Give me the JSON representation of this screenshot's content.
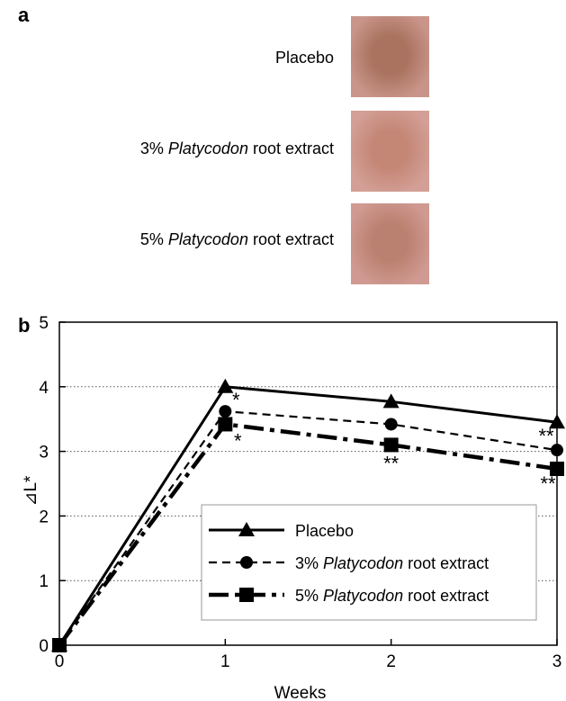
{
  "panel_a": {
    "label": "a",
    "samples": [
      {
        "prefix": "",
        "italic": "",
        "suffix": "Placebo",
        "color_center": "#a9735f",
        "color_edge": "#c9958a"
      },
      {
        "prefix": "3% ",
        "italic": "Platycodon",
        "suffix": " root extract",
        "color_center": "#c48776",
        "color_edge": "#d39f96"
      },
      {
        "prefix": "5% ",
        "italic": "Platycodon",
        "suffix": " root extract",
        "color_center": "#bb8170",
        "color_edge": "#d09a92"
      }
    ]
  },
  "panel_b": {
    "label": "b"
  },
  "chart_data": {
    "type": "line",
    "xlabel": "Weeks",
    "ylabel": "⊿L*",
    "x": [
      0,
      1,
      2,
      3
    ],
    "xlim": [
      0,
      3
    ],
    "ylim": [
      0,
      5
    ],
    "xticks": [
      "0",
      "1",
      "2",
      "3"
    ],
    "yticks": [
      "0",
      "1",
      "2",
      "3",
      "4",
      "5"
    ],
    "grid": "horizontal dotted",
    "legend_position": "bottom-right",
    "series": [
      {
        "name_prefix": "",
        "name_italic": "",
        "name_suffix": "Placebo",
        "marker": "triangle",
        "dash": "solid",
        "values": [
          0,
          4.0,
          3.77,
          3.45
        ]
      },
      {
        "name_prefix": "3% ",
        "name_italic": "Platycodon",
        "name_suffix": " root extract",
        "marker": "circle",
        "dash": "dashed",
        "values": [
          0,
          3.62,
          3.42,
          3.02
        ]
      },
      {
        "name_prefix": "5% ",
        "name_italic": "Platycodon",
        "name_suffix": " root extract",
        "marker": "square",
        "dash": "dashdot",
        "values": [
          0,
          3.42,
          3.1,
          2.73
        ]
      }
    ],
    "annotations": [
      {
        "text": "*",
        "x": 1,
        "y": 3.62,
        "anchor": "above-right"
      },
      {
        "text": "*",
        "x": 1,
        "y": 3.42,
        "anchor": "below-right"
      },
      {
        "text": "**",
        "x": 2,
        "y": 3.1,
        "anchor": "below"
      },
      {
        "text": "**",
        "x": 3,
        "y": 3.02,
        "anchor": "above-left"
      },
      {
        "text": "**",
        "x": 3,
        "y": 2.73,
        "anchor": "below-left"
      }
    ]
  }
}
